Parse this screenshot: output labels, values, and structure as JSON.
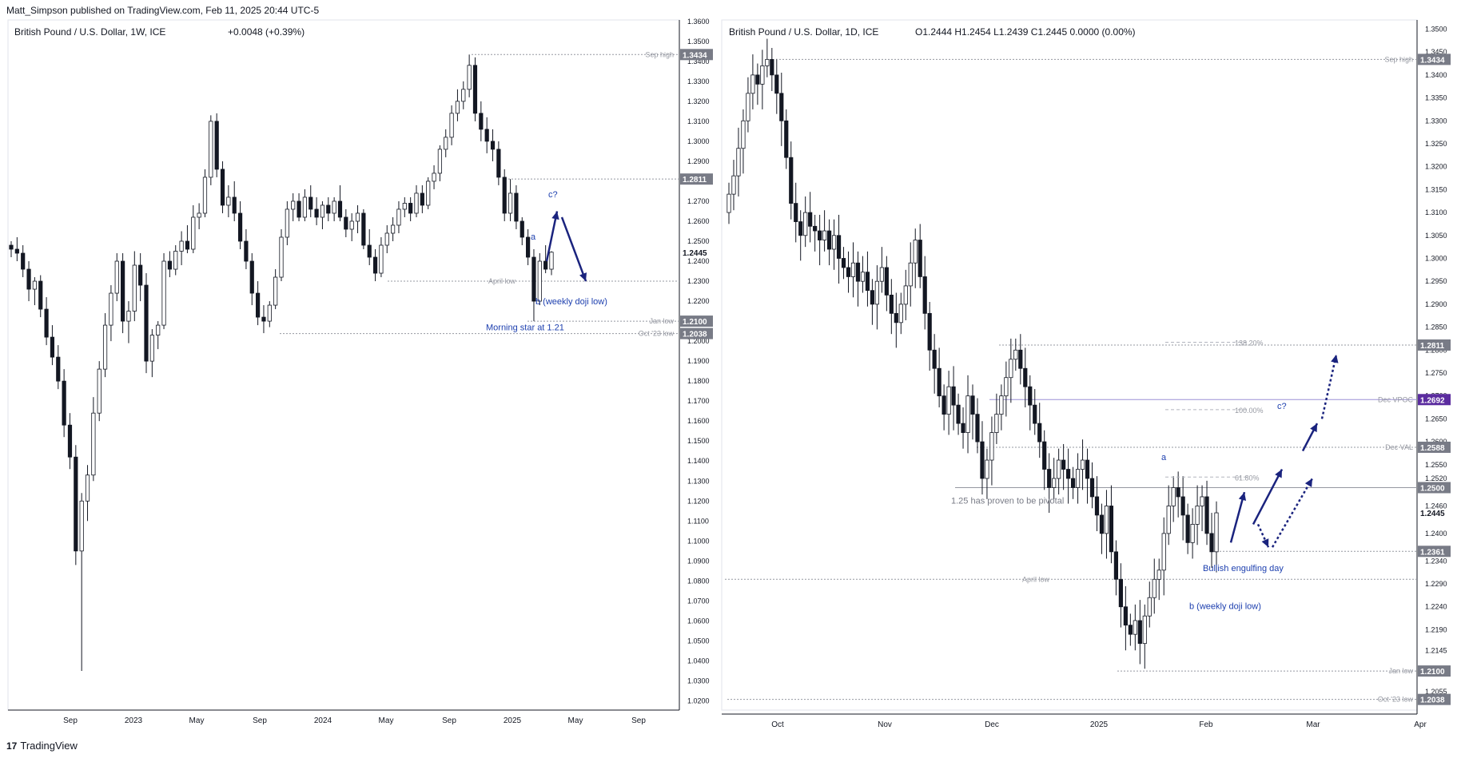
{
  "header": {
    "publisher": "Matt_Simpson published on TradingView.com, Feb 11, 2025 20:44 UTC-5"
  },
  "footer": {
    "brand": "TradingView",
    "logo_glyph": "17"
  },
  "colors": {
    "up": "#ffffff",
    "down": "#131722",
    "annotation": "#1e40af",
    "arrow": "#1a237e",
    "level": "#9598a1",
    "vpoc": "#5b2c9f"
  },
  "chart_data": [
    {
      "type": "candlestick",
      "title": "British Pound / U.S. Dollar, 1W, ICE",
      "change": "+0.0048 (+0.39%)",
      "ylim": [
        1.0186,
        1.3607
      ],
      "y_ticks": [
        "1.3600",
        "1.3500",
        "1.3400",
        "1.3300",
        "1.3200",
        "1.3100",
        "1.3000",
        "1.2900",
        "1.2800",
        "1.2700",
        "1.2600",
        "1.2500",
        "1.2400",
        "1.2300",
        "1.2200",
        "1.2100",
        "1.2000",
        "1.1900",
        "1.1800",
        "1.1700",
        "1.1600",
        "1.1500",
        "1.1400",
        "1.1300",
        "1.1200",
        "1.1100",
        "1.1000",
        "1.0900",
        "1.0800",
        "1.0700",
        "1.0600",
        "1.0500",
        "1.0400",
        "1.0300",
        "1.0200"
      ],
      "x_ticks": [
        "Sep",
        "2023",
        "May",
        "Sep",
        "2024",
        "May",
        "Sep",
        "2025",
        "May",
        "Sep"
      ],
      "price_tags": [
        {
          "label": "1.3434",
          "value": 1.3434,
          "kind": "dark"
        },
        {
          "label": "1.2811",
          "value": 1.2811,
          "kind": "dark"
        },
        {
          "label": "1.2445",
          "value": 1.2445,
          "kind": "plain"
        },
        {
          "label": "1.2100",
          "value": 1.21,
          "kind": "dark"
        },
        {
          "label": "1.2038",
          "value": 1.2038,
          "kind": "dark"
        }
      ],
      "levels": [
        {
          "label": "Sep high",
          "value": 1.3434
        },
        {
          "label": "",
          "value": 1.2811
        },
        {
          "label": "April low",
          "value": 1.23
        },
        {
          "label": "Jan low",
          "value": 1.21
        },
        {
          "label": "Oct '23 low",
          "value": 1.2038
        }
      ],
      "annotations": [
        "a",
        "c?",
        "b (weekly doji low)",
        "Morning star at 1.21"
      ],
      "candles_ohlc": [
        [
          1.248,
          1.25,
          1.242,
          1.246
        ],
        [
          1.246,
          1.252,
          1.24,
          1.244
        ],
        [
          1.244,
          1.248,
          1.232,
          1.236
        ],
        [
          1.236,
          1.24,
          1.22,
          1.226
        ],
        [
          1.226,
          1.232,
          1.218,
          1.23
        ],
        [
          1.23,
          1.233,
          1.212,
          1.216
        ],
        [
          1.216,
          1.222,
          1.198,
          1.202
        ],
        [
          1.202,
          1.208,
          1.188,
          1.192
        ],
        [
          1.192,
          1.198,
          1.176,
          1.18
        ],
        [
          1.18,
          1.186,
          1.152,
          1.158
        ],
        [
          1.158,
          1.164,
          1.136,
          1.142
        ],
        [
          1.142,
          1.148,
          1.088,
          1.095
        ],
        [
          1.095,
          1.124,
          1.035,
          1.12
        ],
        [
          1.12,
          1.138,
          1.11,
          1.133
        ],
        [
          1.133,
          1.172,
          1.13,
          1.164
        ],
        [
          1.164,
          1.19,
          1.16,
          1.186
        ],
        [
          1.186,
          1.214,
          1.182,
          1.208
        ],
        [
          1.208,
          1.228,
          1.2,
          1.224
        ],
        [
          1.224,
          1.244,
          1.22,
          1.24
        ],
        [
          1.24,
          1.244,
          1.204,
          1.21
        ],
        [
          1.21,
          1.22,
          1.199,
          1.215
        ],
        [
          1.215,
          1.245,
          1.21,
          1.238
        ],
        [
          1.238,
          1.244,
          1.22,
          1.228
        ],
        [
          1.228,
          1.234,
          1.184,
          1.19
        ],
        [
          1.19,
          1.206,
          1.182,
          1.203
        ],
        [
          1.203,
          1.21,
          1.196,
          1.208
        ],
        [
          1.208,
          1.244,
          1.206,
          1.24
        ],
        [
          1.24,
          1.245,
          1.232,
          1.236
        ],
        [
          1.236,
          1.248,
          1.233,
          1.245
        ],
        [
          1.245,
          1.255,
          1.238,
          1.25
        ],
        [
          1.25,
          1.258,
          1.244,
          1.246
        ],
        [
          1.246,
          1.268,
          1.244,
          1.262
        ],
        [
          1.262,
          1.269,
          1.256,
          1.264
        ],
        [
          1.264,
          1.286,
          1.262,
          1.282
        ],
        [
          1.282,
          1.313,
          1.278,
          1.31
        ],
        [
          1.31,
          1.314,
          1.282,
          1.286
        ],
        [
          1.286,
          1.29,
          1.264,
          1.268
        ],
        [
          1.268,
          1.278,
          1.262,
          1.272
        ],
        [
          1.272,
          1.28,
          1.26,
          1.264
        ],
        [
          1.264,
          1.27,
          1.246,
          1.25
        ],
        [
          1.25,
          1.256,
          1.236,
          1.24
        ],
        [
          1.24,
          1.244,
          1.218,
          1.224
        ],
        [
          1.224,
          1.23,
          1.208,
          1.212
        ],
        [
          1.212,
          1.218,
          1.204,
          1.21
        ],
        [
          1.21,
          1.22,
          1.207,
          1.218
        ],
        [
          1.218,
          1.236,
          1.216,
          1.232
        ],
        [
          1.232,
          1.256,
          1.23,
          1.252
        ],
        [
          1.252,
          1.27,
          1.248,
          1.266
        ],
        [
          1.266,
          1.274,
          1.26,
          1.27
        ],
        [
          1.27,
          1.274,
          1.26,
          1.262
        ],
        [
          1.262,
          1.276,
          1.26,
          1.272
        ],
        [
          1.272,
          1.278,
          1.262,
          1.266
        ],
        [
          1.266,
          1.272,
          1.258,
          1.262
        ],
        [
          1.262,
          1.27,
          1.256,
          1.268
        ],
        [
          1.268,
          1.272,
          1.26,
          1.264
        ],
        [
          1.264,
          1.272,
          1.26,
          1.27
        ],
        [
          1.27,
          1.278,
          1.26,
          1.262
        ],
        [
          1.262,
          1.266,
          1.252,
          1.256
        ],
        [
          1.256,
          1.264,
          1.25,
          1.26
        ],
        [
          1.26,
          1.268,
          1.254,
          1.264
        ],
        [
          1.264,
          1.266,
          1.246,
          1.248
        ],
        [
          1.248,
          1.256,
          1.238,
          1.242
        ],
        [
          1.242,
          1.246,
          1.23,
          1.234
        ],
        [
          1.234,
          1.252,
          1.232,
          1.248
        ],
        [
          1.248,
          1.258,
          1.244,
          1.254
        ],
        [
          1.254,
          1.262,
          1.25,
          1.258
        ],
        [
          1.258,
          1.27,
          1.254,
          1.266
        ],
        [
          1.266,
          1.272,
          1.262,
          1.269
        ],
        [
          1.269,
          1.272,
          1.26,
          1.264
        ],
        [
          1.264,
          1.278,
          1.262,
          1.274
        ],
        [
          1.274,
          1.278,
          1.264,
          1.268
        ],
        [
          1.268,
          1.282,
          1.266,
          1.28
        ],
        [
          1.28,
          1.288,
          1.276,
          1.284
        ],
        [
          1.284,
          1.298,
          1.28,
          1.296
        ],
        [
          1.296,
          1.306,
          1.292,
          1.302
        ],
        [
          1.302,
          1.318,
          1.298,
          1.314
        ],
        [
          1.314,
          1.326,
          1.31,
          1.32
        ],
        [
          1.32,
          1.33,
          1.316,
          1.326
        ],
        [
          1.326,
          1.3434,
          1.322,
          1.338
        ],
        [
          1.338,
          1.342,
          1.31,
          1.314
        ],
        [
          1.314,
          1.32,
          1.3,
          1.306
        ],
        [
          1.306,
          1.312,
          1.294,
          1.3
        ],
        [
          1.3,
          1.306,
          1.29,
          1.296
        ],
        [
          1.296,
          1.3,
          1.278,
          1.282
        ],
        [
          1.282,
          1.286,
          1.26,
          1.264
        ],
        [
          1.264,
          1.2811,
          1.26,
          1.274
        ],
        [
          1.274,
          1.278,
          1.256,
          1.26
        ],
        [
          1.26,
          1.262,
          1.248,
          1.252
        ],
        [
          1.252,
          1.256,
          1.238,
          1.242
        ],
        [
          1.242,
          1.246,
          1.21,
          1.22
        ],
        [
          1.22,
          1.244,
          1.218,
          1.24
        ],
        [
          1.24,
          1.248,
          1.234,
          1.236
        ],
        [
          1.236,
          1.245,
          1.233,
          1.2445
        ]
      ],
      "projection": [
        [
          1.24,
          1.265
        ],
        [
          1.265,
          1.23
        ]
      ]
    },
    {
      "type": "candlestick",
      "title": "British Pound / U.S. Dollar, 1D, ICE",
      "ohlc": "O1.2444 H1.2454 L1.2439 C1.2445 0.0000 (0.00%)",
      "ylim": [
        1.202,
        1.352
      ],
      "y_ticks": [
        "1.3500",
        "1.3450",
        "1.3400",
        "1.3350",
        "1.3300",
        "1.3250",
        "1.3200",
        "1.3150",
        "1.3100",
        "1.3050",
        "1.3000",
        "1.2950",
        "1.2900",
        "1.2850",
        "1.2800",
        "1.2750",
        "1.2700",
        "1.2650",
        "1.2600",
        "1.2550",
        "1.2520",
        "1.2460",
        "1.2400",
        "1.2340",
        "1.2290",
        "1.2240",
        "1.2190",
        "1.2145",
        "1.2055"
      ],
      "x_ticks": [
        "Oct",
        "Nov",
        "Dec",
        "2025",
        "Feb",
        "Mar",
        "Apr"
      ],
      "price_tags": [
        {
          "label": "1.3434",
          "value": 1.3434,
          "kind": "dark"
        },
        {
          "label": "1.2811",
          "value": 1.2811,
          "kind": "dark"
        },
        {
          "label": "1.2692",
          "value": 1.2692,
          "kind": "purple"
        },
        {
          "label": "1.2588",
          "value": 1.2588,
          "kind": "dark"
        },
        {
          "label": "1.2500",
          "value": 1.25,
          "kind": "dark"
        },
        {
          "label": "1.2445",
          "value": 1.2445,
          "kind": "plain"
        },
        {
          "label": "1.2361",
          "value": 1.2361,
          "kind": "dark"
        },
        {
          "label": "1.2100",
          "value": 1.21,
          "kind": "dark"
        },
        {
          "label": "1.2038",
          "value": 1.2038,
          "kind": "dark"
        }
      ],
      "levels": [
        {
          "label": "Sep high",
          "value": 1.3434
        },
        {
          "label": "",
          "value": 1.2811
        },
        {
          "label": "Dec VPOC",
          "value": 1.2692
        },
        {
          "label": "Dec VAL",
          "value": 1.2588
        },
        {
          "label": "",
          "value": 1.25
        },
        {
          "label": "",
          "value": 1.2361
        },
        {
          "label": "April low",
          "value": 1.23
        },
        {
          "label": "Jan low",
          "value": 1.21
        },
        {
          "label": "Oct '23 low",
          "value": 1.2038
        }
      ],
      "fib": [
        {
          "label": "138.20%",
          "value": 1.2817
        },
        {
          "label": "100.00%",
          "value": 1.267
        },
        {
          "label": "61.80%",
          "value": 1.2523
        }
      ],
      "annotations": [
        "1.25 has proven to be pivotal",
        "a",
        "c?",
        "Bullish engulfing day",
        "b (weekly doji low)"
      ],
      "closes": [
        1.314,
        1.318,
        1.324,
        1.33,
        1.336,
        1.34,
        1.338,
        1.342,
        1.3434,
        1.34,
        1.336,
        1.33,
        1.322,
        1.312,
        1.308,
        1.305,
        1.31,
        1.307,
        1.306,
        1.304,
        1.306,
        1.302,
        1.305,
        1.3,
        1.298,
        1.296,
        1.299,
        1.295,
        1.297,
        1.293,
        1.29,
        1.295,
        1.298,
        1.292,
        1.288,
        1.286,
        1.29,
        1.294,
        1.299,
        1.304,
        1.296,
        1.288,
        1.28,
        1.276,
        1.27,
        1.266,
        1.272,
        1.268,
        1.264,
        1.262,
        1.27,
        1.266,
        1.26,
        1.252,
        1.256,
        1.262,
        1.266,
        1.27,
        1.274,
        1.278,
        1.28,
        1.276,
        1.272,
        1.268,
        1.264,
        1.26,
        1.254,
        1.25,
        1.252,
        1.256,
        1.254,
        1.252,
        1.25,
        1.254,
        1.256,
        1.252,
        1.248,
        1.244,
        1.24,
        1.246,
        1.236,
        1.23,
        1.224,
        1.22,
        1.218,
        1.221,
        1.216,
        1.222,
        1.226,
        1.23,
        1.232,
        1.24,
        1.246,
        1.25,
        1.248,
        1.244,
        1.238,
        1.242,
        1.246,
        1.248,
        1.24,
        1.236,
        1.2445
      ],
      "solid_arrows": [
        [
          1.238,
          1.249
        ],
        [
          1.242,
          1.254,
          1.264
        ]
      ],
      "dotted_arrows": [
        [
          1.242,
          1.237
        ],
        [
          1.237,
          1.252
        ],
        [
          1.265,
          1.279
        ]
      ]
    }
  ]
}
